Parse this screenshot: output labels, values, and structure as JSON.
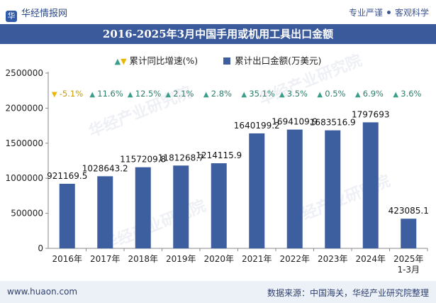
{
  "header": {
    "brand": "华经情报网",
    "brand_icon": "logo-icon",
    "tagline_a": "专业严谨",
    "tagline_b": "客观科学"
  },
  "watermark": "华经产业研究院",
  "chart_data": {
    "type": "bar",
    "title": "2016-2025年3月中国手用或机用工具出口金额",
    "legend": {
      "growth_label": "累计同比增速(%)",
      "value_label": "累计出口金额(万美元)"
    },
    "categories": [
      "2016年",
      "2017年",
      "2018年",
      "2019年",
      "2020年",
      "2021年",
      "2022年",
      "2023年",
      "2024年",
      "2025年1-3月"
    ],
    "category_lines": [
      [
        "2016年"
      ],
      [
        "2017年"
      ],
      [
        "2018年"
      ],
      [
        "2019年"
      ],
      [
        "2020年"
      ],
      [
        "2021年"
      ],
      [
        "2022年"
      ],
      [
        "2023年"
      ],
      [
        "2024年"
      ],
      [
        "2025年",
        "1-3月"
      ]
    ],
    "series": [
      {
        "name": "累计出口金额(万美元)",
        "values": [
          921169.5,
          1028643.2,
          1157209.8,
          1181268.7,
          1214115.9,
          1640199.2,
          1694109.9,
          1683516.9,
          1797693,
          423085.1
        ],
        "labels": [
          "921169.5",
          "1028643.2",
          "1157209.8",
          "1181268.7",
          "1214115.9",
          "1640199.2",
          "1694109.9",
          "1683516.9",
          "1797693",
          "423085.1"
        ]
      },
      {
        "name": "累计同比增速(%)",
        "values": [
          -5.1,
          11.6,
          12.5,
          2.1,
          2.8,
          35.1,
          3.5,
          0.5,
          6.9,
          3.6
        ],
        "labels": [
          "-5.1%",
          "11.6%",
          "12.5%",
          "2.1%",
          "2.8%",
          "35.1%",
          "3.5%",
          "0.5%",
          "6.9%",
          "3.6%"
        ]
      }
    ],
    "ylim": [
      0,
      2500000
    ],
    "yticks": [
      "0",
      "500000",
      "1000000",
      "1500000",
      "2000000",
      "2500000"
    ],
    "ytick_values": [
      0,
      500000,
      1000000,
      1500000,
      2000000,
      2500000
    ],
    "colors": {
      "bar": "#3e5f9f",
      "up": "#3a9e8a",
      "down": "#e8b800",
      "title_bg": "#3a5a9c"
    }
  },
  "footer": {
    "site": "www.huaon.com",
    "source": "数据来源：中国海关，华经产业研究院整理"
  }
}
